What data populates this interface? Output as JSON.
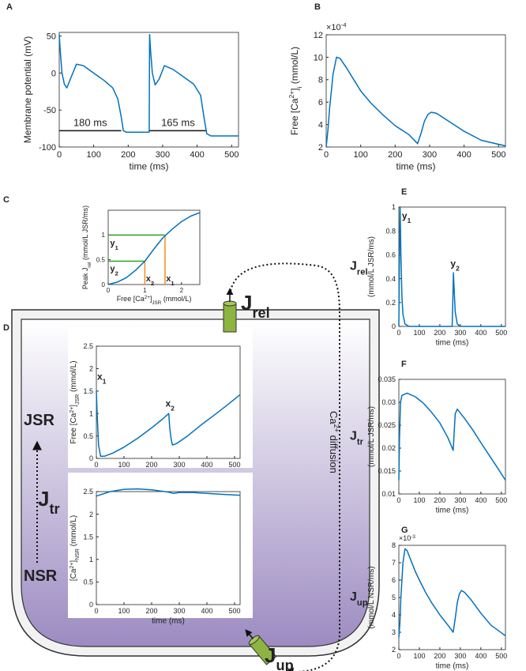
{
  "chart_data": [
    {
      "type": "line",
      "label": "A",
      "ylabel": "Membrane potential (mV)",
      "xlabel": "time (ms)",
      "xlim": [
        0,
        520
      ],
      "ylim": [
        -100,
        55
      ],
      "xticks": [
        0,
        100,
        200,
        300,
        400,
        500
      ],
      "yticks": [
        -100,
        -50,
        0,
        50
      ],
      "series": [
        {
          "color": "#0072bd",
          "x": [
            0,
            3,
            8,
            15,
            22,
            35,
            50,
            70,
            100,
            130,
            155,
            170,
            180,
            186,
            195,
            260,
            261,
            262,
            265,
            270,
            278,
            290,
            305,
            330,
            360,
            390,
            410,
            420,
            428,
            440,
            520
          ],
          "values": [
            52,
            30,
            0,
            -15,
            -20,
            -5,
            12,
            10,
            0,
            -10,
            -20,
            -35,
            -60,
            -78,
            -80,
            -80,
            -80,
            52,
            30,
            0,
            -16,
            -8,
            10,
            5,
            -5,
            -15,
            -30,
            -60,
            -82,
            -85,
            -85
          ]
        }
      ],
      "intervals": [
        {
          "label": "180 ms",
          "start": 0,
          "end": 180,
          "level": -78
        },
        {
          "label": "165 ms",
          "start": 262,
          "end": 427,
          "level": -78
        }
      ]
    },
    {
      "type": "line",
      "label": "B",
      "ylabel": [
        {
          "t": "Free [Ca"
        },
        {
          "t": "2+",
          "s": "sup"
        },
        {
          "t": "]"
        },
        {
          "t": "i",
          "s": "sub"
        },
        {
          "t": " (mmol/L)"
        }
      ],
      "xlabel": "time (ms)",
      "exponent": [
        {
          "t": "×10"
        },
        {
          "t": "-4",
          "s": "sup"
        }
      ],
      "xlim": [
        0,
        520
      ],
      "ylim": [
        2,
        12
      ],
      "xticks": [
        0,
        100,
        200,
        300,
        400,
        500
      ],
      "yticks": [
        2,
        4,
        6,
        8,
        10,
        12
      ],
      "series": [
        {
          "color": "#0072bd",
          "x": [
            0,
            5,
            10,
            20,
            30,
            40,
            60,
            80,
            100,
            130,
            160,
            200,
            240,
            265,
            275,
            285,
            295,
            305,
            320,
            350,
            400,
            450,
            520
          ],
          "values": [
            2,
            3.5,
            5.5,
            8.5,
            10,
            9.9,
            9,
            8,
            7,
            5.9,
            5,
            3.9,
            3.1,
            2.3,
            3.2,
            4.3,
            4.9,
            5.1,
            5,
            4.4,
            3.4,
            2.6,
            2.1
          ]
        }
      ]
    },
    {
      "type": "line",
      "label": "C",
      "ylabel": [
        {
          "t": "Peak J"
        },
        {
          "t": "rel",
          "s": "sub"
        },
        {
          "t": " (mmol/L JSR/ms)"
        }
      ],
      "xlabel": [
        {
          "t": "Free [Ca"
        },
        {
          "t": "2+",
          "s": "sup"
        },
        {
          "t": "]"
        },
        {
          "t": "JSR",
          "s": "sub"
        },
        {
          "t": " (mmol/L)"
        }
      ],
      "xlim": [
        0,
        2.5
      ],
      "ylim": [
        0,
        1.5
      ],
      "xticks": [
        0,
        1,
        2
      ],
      "yticks": [
        0,
        0.5,
        1
      ],
      "series": [
        {
          "color": "#0072bd",
          "x": [
            0,
            0.25,
            0.5,
            0.75,
            1,
            1.25,
            1.5,
            1.75,
            2,
            2.25,
            2.5
          ],
          "values": [
            0,
            0.05,
            0.14,
            0.29,
            0.47,
            0.72,
            0.95,
            1.12,
            1.27,
            1.38,
            1.45
          ]
        }
      ],
      "guides": [
        {
          "x": 1.55,
          "y": 1,
          "ycolor": "#2ca02c",
          "xcolor": "#f28e1c"
        },
        {
          "x": 1,
          "y": 0.47,
          "ycolor": "#2ca02c",
          "xcolor": "#f28e1c"
        }
      ],
      "notes": [
        {
          "text": [
            {
              "t": "y"
            },
            {
              "t": "1",
              "s": "sub"
            }
          ],
          "color": "#2ca02c"
        },
        {
          "text": [
            {
              "t": "y"
            },
            {
              "t": "2",
              "s": "sub"
            }
          ],
          "color": "#2ca02c"
        },
        {
          "text": [
            {
              "t": "x"
            },
            {
              "t": "2",
              "s": "sub"
            }
          ],
          "color": "#f28e1c"
        },
        {
          "text": [
            {
              "t": "x"
            },
            {
              "t": "1",
              "s": "sub"
            }
          ],
          "color": "#f28e1c"
        }
      ]
    },
    {
      "type": "line",
      "ylabel": [
        {
          "t": "Free [Ca"
        },
        {
          "t": "2+",
          "s": "sup"
        },
        {
          "t": "]"
        },
        {
          "t": "JSR",
          "s": "sub"
        },
        {
          "t": " (mmol/L)"
        }
      ],
      "xlim": [
        0,
        520
      ],
      "ylim": [
        0,
        2.5
      ],
      "xticks": [
        0,
        100,
        200,
        300,
        400,
        500
      ],
      "yticks": [
        0,
        0.5,
        1,
        1.5,
        2,
        2.5
      ],
      "series": [
        {
          "color": "#0072bd",
          "x": [
            0,
            3,
            8,
            15,
            30,
            60,
            100,
            150,
            200,
            240,
            262,
            265,
            270,
            275,
            290,
            330,
            380,
            430,
            480,
            520
          ],
          "values": [
            1.5,
            1,
            0.3,
            0.05,
            0.05,
            0.12,
            0.25,
            0.45,
            0.68,
            0.88,
            1,
            0.7,
            0.45,
            0.3,
            0.33,
            0.5,
            0.75,
            0.98,
            1.22,
            1.42
          ]
        }
      ],
      "notes": [
        {
          "text": [
            {
              "t": "x"
            },
            {
              "t": "1",
              "s": "sub"
            }
          ],
          "color": "#f28e1c"
        },
        {
          "text": [
            {
              "t": "x"
            },
            {
              "t": "2",
              "s": "sub"
            }
          ],
          "color": "#f28e1c"
        }
      ]
    },
    {
      "type": "line",
      "ylabel": [
        {
          "t": "[Ca"
        },
        {
          "t": "2+",
          "s": "sup"
        },
        {
          "t": "]"
        },
        {
          "t": "NSR",
          "s": "sub"
        },
        {
          "t": " (mmol/L)"
        }
      ],
      "xlabel": "time (ms)",
      "xlim": [
        0,
        520
      ],
      "ylim": [
        0,
        2.5
      ],
      "xticks": [
        0,
        100,
        200,
        300,
        400,
        500
      ],
      "yticks": [
        0,
        0.5,
        1,
        1.5,
        2,
        2.5
      ],
      "series": [
        {
          "color": "#0072bd",
          "x": [
            0,
            50,
            100,
            150,
            200,
            260,
            280,
            300,
            350,
            400,
            450,
            520
          ],
          "values": [
            2.4,
            2.5,
            2.55,
            2.56,
            2.54,
            2.49,
            2.46,
            2.48,
            2.48,
            2.46,
            2.44,
            2.42
          ]
        }
      ]
    },
    {
      "type": "line",
      "label": "E",
      "symbol": [
        {
          "t": "J"
        },
        {
          "t": "rel",
          "s": "sub"
        }
      ],
      "ylabel": "(mmol/L JSR/ms)",
      "xlabel": "time (ms)",
      "xlim": [
        0,
        520
      ],
      "ylim": [
        0,
        1
      ],
      "xticks": [
        0,
        100,
        200,
        300,
        400,
        500
      ],
      "yticks": [
        0,
        0.2,
        0.4,
        0.6,
        0.8,
        1
      ],
      "series": [
        {
          "color": "#0072bd",
          "x": [
            0,
            3,
            6,
            10,
            15,
            20,
            30,
            50,
            260,
            263,
            266,
            270,
            275,
            285,
            300,
            520
          ],
          "values": [
            0,
            0.6,
            1,
            0.6,
            0.25,
            0.1,
            0.02,
            0,
            0,
            0.2,
            0.45,
            0.3,
            0.12,
            0.02,
            0,
            0
          ]
        }
      ],
      "notes": [
        {
          "text": [
            {
              "t": "y"
            },
            {
              "t": "1",
              "s": "sub"
            }
          ],
          "color": "#2ca02c"
        },
        {
          "text": [
            {
              "t": "y"
            },
            {
              "t": "2",
              "s": "sub"
            }
          ],
          "color": "#2ca02c"
        }
      ]
    },
    {
      "type": "line",
      "label": "F",
      "symbol": [
        {
          "t": "J"
        },
        {
          "t": "tr",
          "s": "sub"
        }
      ],
      "ylabel": "(mmol/L JSR/ms)",
      "xlabel": "time (ms)",
      "xlim": [
        0,
        520
      ],
      "ylim": [
        0.01,
        0.035
      ],
      "xticks": [
        0,
        100,
        200,
        300,
        400,
        500
      ],
      "yticks": [
        0.01,
        0.015,
        0.02,
        0.025,
        0.03,
        0.035
      ],
      "series": [
        {
          "color": "#0072bd",
          "x": [
            0,
            3,
            8,
            15,
            40,
            80,
            120,
            160,
            200,
            240,
            265,
            268,
            275,
            285,
            320,
            360,
            400,
            440,
            480,
            520
          ],
          "values": [
            0.013,
            0.022,
            0.03,
            0.0315,
            0.032,
            0.0312,
            0.0298,
            0.0278,
            0.0255,
            0.0222,
            0.0195,
            0.022,
            0.0275,
            0.0285,
            0.0265,
            0.024,
            0.0212,
            0.0185,
            0.0158,
            0.013
          ]
        }
      ]
    },
    {
      "type": "line",
      "label": "G",
      "symbol": [
        {
          "t": "J"
        },
        {
          "t": "up",
          "s": "sub"
        }
      ],
      "ylabel": "(mmol/L NSR/ms)",
      "xlabel": "time (ms)",
      "exponent": [
        {
          "t": "×10"
        },
        {
          "t": "-3",
          "s": "sup"
        }
      ],
      "xlim": [
        0,
        520
      ],
      "ylim": [
        2,
        8
      ],
      "xticks": [
        0,
        100,
        200,
        300,
        400,
        500
      ],
      "yticks": [
        2,
        3,
        4,
        5,
        6,
        7,
        8
      ],
      "series": [
        {
          "color": "#0072bd",
          "x": [
            0,
            5,
            10,
            20,
            30,
            40,
            60,
            80,
            100,
            130,
            160,
            200,
            240,
            265,
            275,
            285,
            295,
            305,
            320,
            350,
            400,
            450,
            520
          ],
          "values": [
            2.7,
            3.5,
            5,
            7,
            7.8,
            7.7,
            7.1,
            6.5,
            6,
            5.3,
            4.7,
            4,
            3.4,
            3,
            3.8,
            4.7,
            5.2,
            5.4,
            5.3,
            4.9,
            4.1,
            3.4,
            2.8
          ]
        }
      ]
    }
  ],
  "diagram": {
    "label": "D",
    "jsr": "JSR",
    "nsr": "NSR",
    "jtr": [
      {
        "t": "J"
      },
      {
        "t": "tr",
        "s": "sub"
      }
    ],
    "jrel": [
      {
        "t": "J"
      },
      {
        "t": "rel",
        "s": "sub"
      }
    ],
    "jup": [
      {
        "t": "J"
      },
      {
        "t": "up",
        "s": "sub"
      }
    ],
    "diffusion": [
      {
        "t": "Ca"
      },
      {
        "t": "2+",
        "s": "sup"
      },
      {
        "t": " diffusion"
      }
    ]
  }
}
